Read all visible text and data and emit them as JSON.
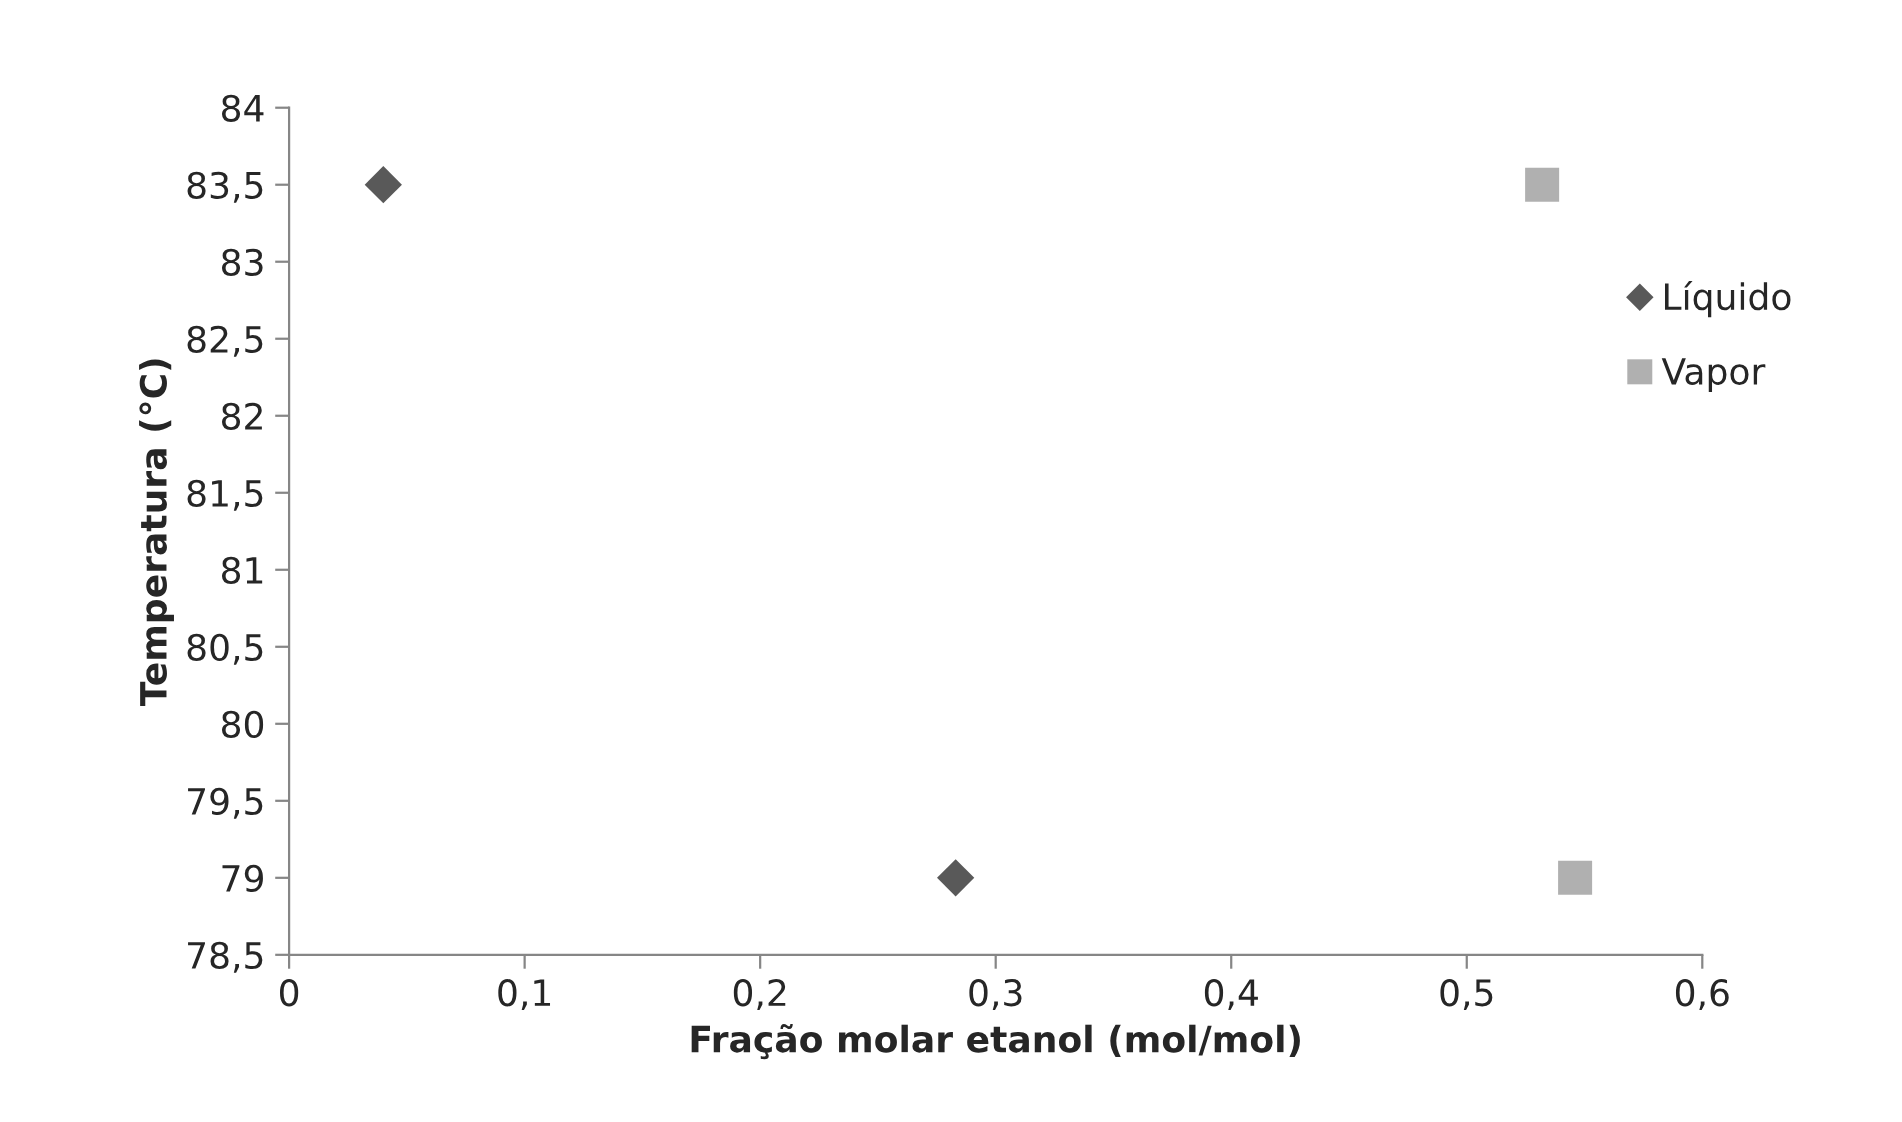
{
  "chart_data": {
    "type": "scatter",
    "xlabel": "Fração molar etanol (mol/mol)",
    "ylabel": "Temperatura (°C)",
    "series": [
      {
        "name": "Líquido",
        "color": "#595959",
        "marker": "diamond",
        "x": [
          0.04,
          0.283
        ],
        "values": [
          83.5,
          79
        ]
      },
      {
        "name": "Vapor",
        "color": "#b0b0b0",
        "marker": "square",
        "x": [
          0.532,
          0.546
        ],
        "values": [
          83.5,
          79
        ]
      }
    ],
    "xlim": [
      0,
      0.6
    ],
    "xticks": [
      {
        "value": 0,
        "label": "0"
      },
      {
        "value": 0.1,
        "label": "0,1"
      },
      {
        "value": 0.2,
        "label": "0,2"
      },
      {
        "value": 0.3,
        "label": "0,3"
      },
      {
        "value": 0.4,
        "label": "0,4"
      },
      {
        "value": 0.5,
        "label": "0,5"
      },
      {
        "value": 0.6,
        "label": "0,6"
      }
    ],
    "ylim": [
      78.5,
      84
    ],
    "yticks": [
      {
        "value": 78.5,
        "label": "78,5"
      },
      {
        "value": 79,
        "label": "79"
      },
      {
        "value": 79.5,
        "label": "79,5"
      },
      {
        "value": 80,
        "label": "80"
      },
      {
        "value": 80.5,
        "label": "80,5"
      },
      {
        "value": 81,
        "label": "81"
      },
      {
        "value": 81.5,
        "label": "81,5"
      },
      {
        "value": 82,
        "label": "82"
      },
      {
        "value": 82.5,
        "label": "82,5"
      },
      {
        "value": 83,
        "label": "83"
      },
      {
        "value": 83.5,
        "label": "83,5"
      },
      {
        "value": 84,
        "label": "84"
      }
    ],
    "grid": false,
    "legend": "right"
  }
}
